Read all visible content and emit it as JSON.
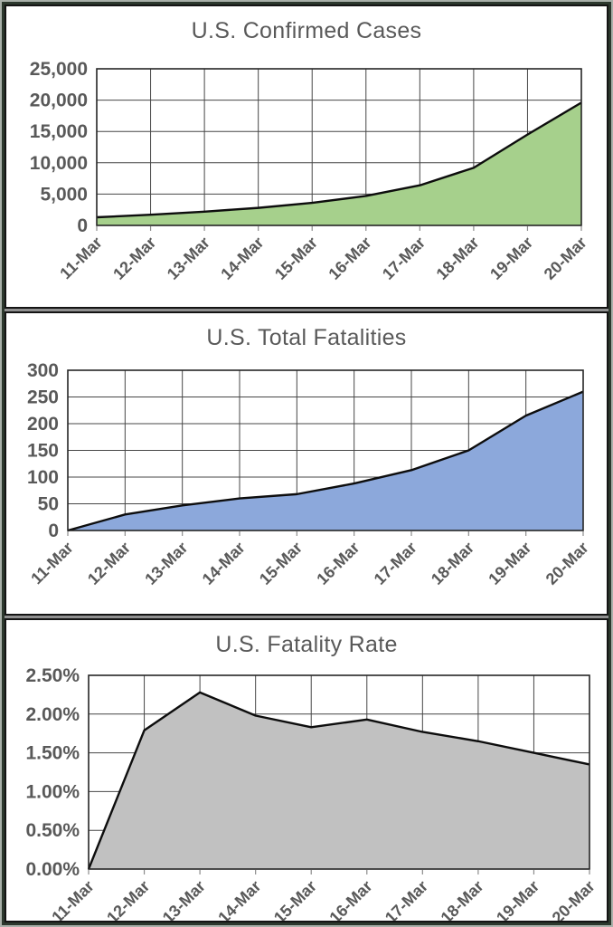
{
  "style": {
    "text_color": "#595959",
    "grid_color": "#474747",
    "plot_border_color": "#262626",
    "series_line_color": "#0d0d0d",
    "tick_mark_color": "#8c8c8c",
    "panel_background": "#ffffff",
    "frame_border_outer": "#a9b0a9",
    "frame_border_inner": "#2c382d"
  },
  "chart_data": [
    {
      "type": "area",
      "title": "U.S. Confirmed Cases",
      "categories": [
        "11-Mar",
        "12-Mar",
        "13-Mar",
        "14-Mar",
        "15-Mar",
        "16-Mar",
        "17-Mar",
        "18-Mar",
        "19-Mar",
        "20-Mar"
      ],
      "values": [
        1300,
        1700,
        2200,
        2800,
        3600,
        4700,
        6400,
        9200,
        14500,
        19600
      ],
      "xlabel": "",
      "ylabel": "",
      "ylim": [
        0,
        25000
      ],
      "ytick_labels": [
        "0",
        "5,000",
        "10,000",
        "15,000",
        "20,000",
        "25,000"
      ],
      "grid": true,
      "legend": false,
      "area_color": "#a6d08c"
    },
    {
      "type": "area",
      "title": "U.S. Total Fatalities",
      "categories": [
        "11-Mar",
        "12-Mar",
        "13-Mar",
        "14-Mar",
        "15-Mar",
        "16-Mar",
        "17-Mar",
        "18-Mar",
        "19-Mar",
        "20-Mar"
      ],
      "values": [
        0,
        30,
        47,
        60,
        68,
        88,
        113,
        150,
        215,
        260
      ],
      "xlabel": "",
      "ylabel": "",
      "ylim": [
        0,
        300
      ],
      "ytick_labels": [
        "0",
        "50",
        "100",
        "150",
        "200",
        "250",
        "300"
      ],
      "grid": true,
      "legend": false,
      "area_color": "#8ca8db"
    },
    {
      "type": "area",
      "title": "U.S. Fatality Rate",
      "categories": [
        "11-Mar",
        "12-Mar",
        "13-Mar",
        "14-Mar",
        "15-Mar",
        "16-Mar",
        "17-Mar",
        "18-Mar",
        "19-Mar",
        "20-Mar"
      ],
      "values": [
        0.0,
        1.79,
        2.28,
        1.98,
        1.83,
        1.93,
        1.77,
        1.65,
        1.5,
        1.35
      ],
      "xlabel": "",
      "ylabel": "",
      "ylim": [
        0,
        2.5
      ],
      "ytick_labels": [
        "0.00%",
        "0.50%",
        "1.00%",
        "1.50%",
        "2.00%",
        "2.50%"
      ],
      "grid": true,
      "legend": false,
      "area_color": "#c1c1c1"
    }
  ]
}
